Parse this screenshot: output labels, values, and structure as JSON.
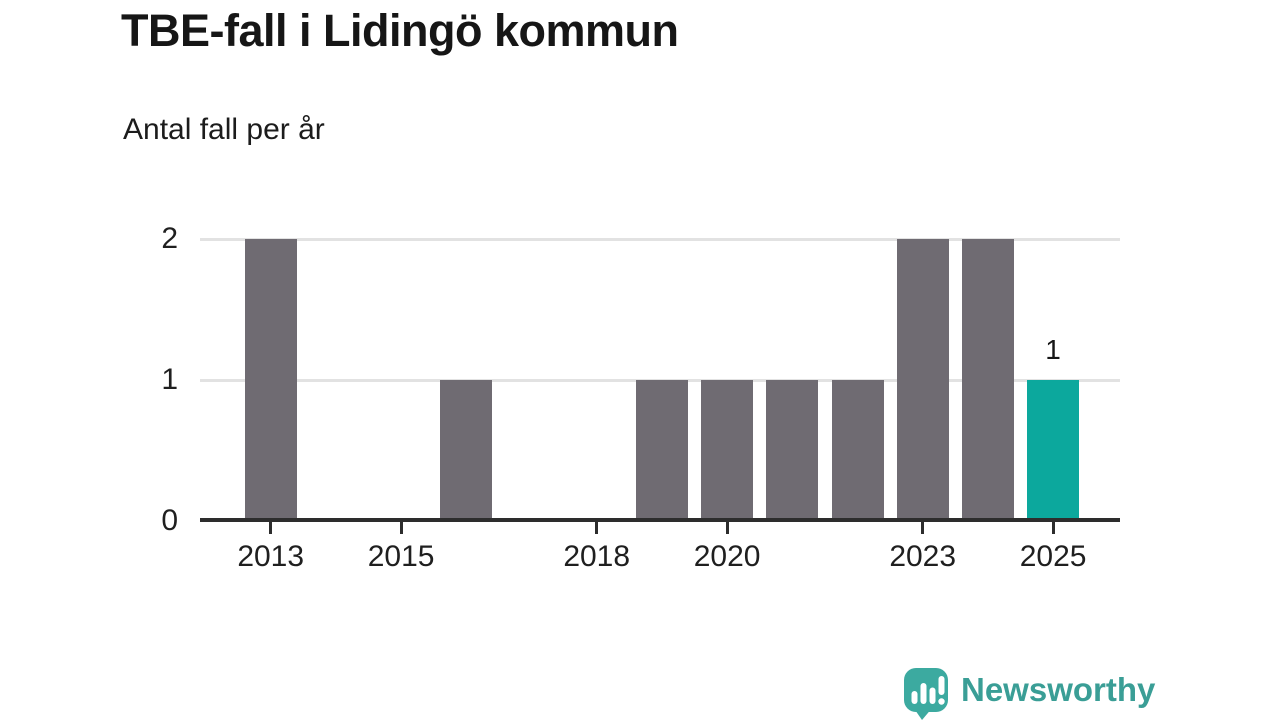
{
  "header": {
    "title": "TBE-fall i Lidingö kommun",
    "subtitle": "Antal fall per år"
  },
  "chart_data": {
    "type": "bar",
    "title": "TBE-fall i Lidingö kommun",
    "subtitle": "Antal fall per år",
    "categories": [
      2013,
      2014,
      2015,
      2016,
      2017,
      2018,
      2019,
      2020,
      2021,
      2022,
      2023,
      2024,
      2025
    ],
    "values": [
      2,
      0,
      0,
      1,
      0,
      0,
      1,
      1,
      1,
      1,
      2,
      2,
      1
    ],
    "xlabel": "",
    "ylabel": "",
    "ylim": [
      0,
      2
    ],
    "y_ticks": [
      0,
      1,
      2
    ],
    "x_tick_years": [
      2013,
      2015,
      2018,
      2020,
      2023,
      2025
    ],
    "grid": "horizontal",
    "legend": "none",
    "highlight": {
      "year": 2025,
      "value_label": "1"
    },
    "colors": {
      "bar": "#6f6b72",
      "highlight_bar": "#0ca89d",
      "gridline": "#e2e2e2",
      "axis": "#2d2d2d",
      "tick_text": "#1f1f1f"
    }
  },
  "footer": {
    "brand_name": "Newsworthy",
    "brand_color": "#3a9e96",
    "icon_color": "#3caaa0",
    "icon": "newsworthy-speech-bubble-bar-chart"
  }
}
